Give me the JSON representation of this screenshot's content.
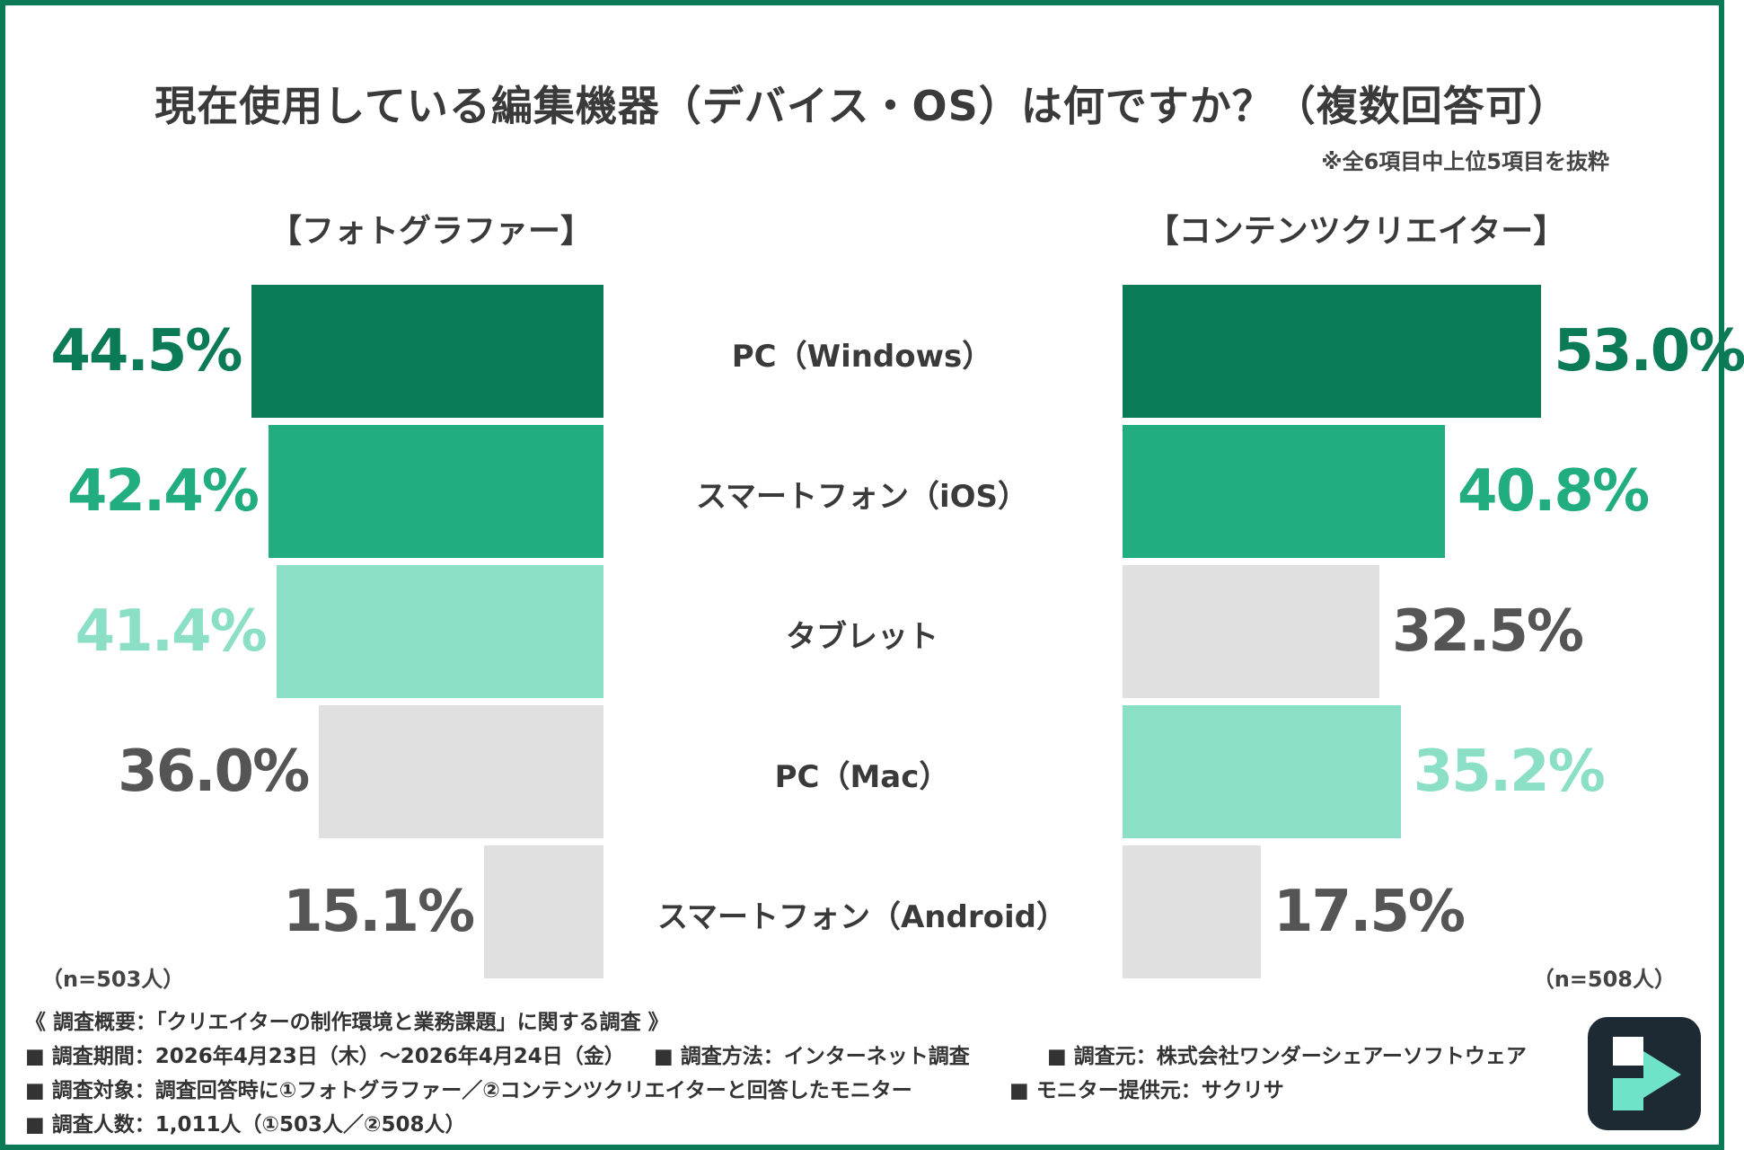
{
  "title": "現在使用している編集機器（デバイス・OS）は何ですか？（複数回答可）",
  "note": "※全6項目中上位5項目を抜粋",
  "colors": {
    "dark": "#0b7a57",
    "mid": "#22ad80",
    "light": "#8adfc6",
    "gray": "#e0e0e0",
    "gray_text": "#555555"
  },
  "chart_data": {
    "type": "bar",
    "orientation": "horizontal-butterfly",
    "unit": "%",
    "categories": [
      "PC（Windows）",
      "スマートフォン（iOS）",
      "タブレット",
      "PC（Mac）",
      "スマートフォン（Android）"
    ],
    "series": [
      {
        "name": "【フォトグラファー】",
        "n_label": "（n=503人）",
        "values": [
          44.5,
          42.4,
          41.4,
          36.0,
          15.1
        ],
        "value_labels": [
          "44.5%",
          "42.4%",
          "41.4%",
          "36.0%",
          "15.1%"
        ],
        "colors": [
          "#0b7a57",
          "#22ad80",
          "#8adfc6",
          "#e0e0e0",
          "#e0e0e0"
        ],
        "label_colors": [
          "#0b7a57",
          "#22ad80",
          "#8adfc6",
          "#555555",
          "#555555"
        ]
      },
      {
        "name": "【コンテンツクリエイター】",
        "n_label": "（n=508人）",
        "values": [
          53.0,
          40.8,
          32.5,
          35.2,
          17.5
        ],
        "value_labels": [
          "53.0%",
          "40.8%",
          "32.5%",
          "35.2%",
          "17.5%"
        ],
        "colors": [
          "#0b7a57",
          "#22ad80",
          "#e0e0e0",
          "#8adfc6",
          "#e0e0e0"
        ],
        "label_colors": [
          "#0b7a57",
          "#22ad80",
          "#555555",
          "#8adfc6",
          "#555555"
        ]
      }
    ]
  },
  "footer": {
    "heading": "《 調査概要：「クリエイターの制作環境と業務課題」に関する調査 》",
    "period": "■ 調査期間：2026年4月23日（木）～2026年4月24日（金）",
    "method": "■ 調査方法：インターネット調査",
    "source": "■ 調査元：株式会社ワンダーシェアーソフトウェア",
    "target": "■ 調査対象：調査回答時に①フォトグラファー／②コンテンツクリエイターと回答したモニター",
    "provider": "■ モニター提供元：サクリサ",
    "count": "■ 調査人数：1,011人（①503人／②508人）"
  },
  "logo_icon": "filmora-logo-icon"
}
